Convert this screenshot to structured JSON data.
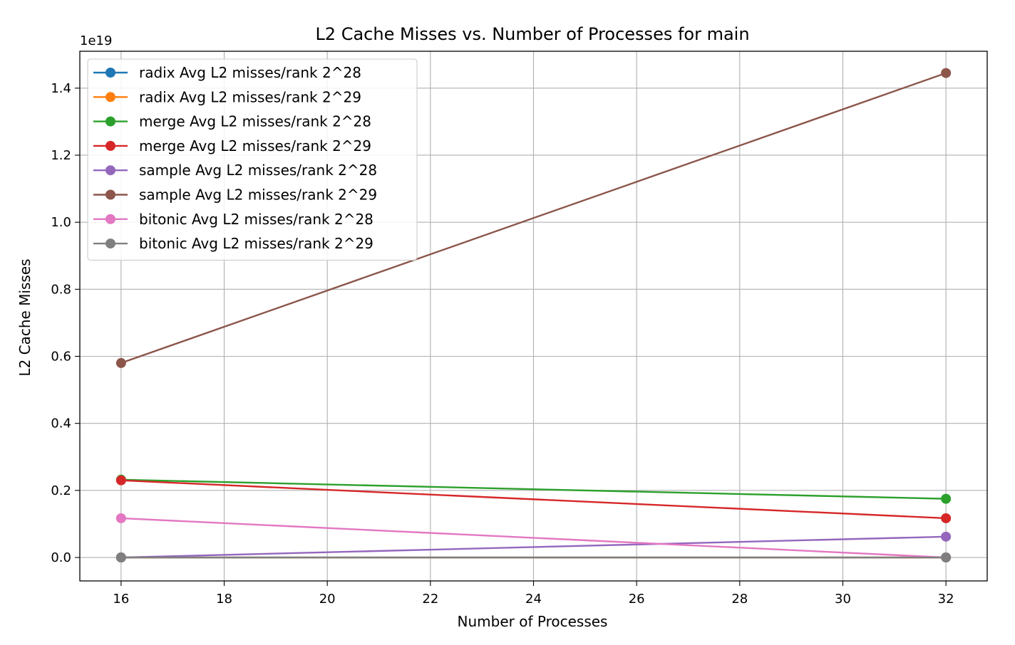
{
  "chart_data": {
    "type": "line",
    "title": "L2 Cache Misses vs. Number of Processes for main",
    "xlabel": "Number of Processes",
    "ylabel": "L2 Cache Misses",
    "y_offset_label": "1e19",
    "x": [
      16,
      32
    ],
    "xlim": [
      15.2,
      32.8
    ],
    "ylim": [
      -0.07,
      1.51
    ],
    "xticks": [
      16,
      18,
      20,
      22,
      24,
      26,
      28,
      30,
      32
    ],
    "xtick_labels": [
      "16",
      "18",
      "20",
      "22",
      "24",
      "26",
      "28",
      "30",
      "32"
    ],
    "yticks": [
      0.0,
      0.2,
      0.4,
      0.6,
      0.8,
      1.0,
      1.2,
      1.4
    ],
    "ytick_labels": [
      "0.0",
      "0.2",
      "0.4",
      "0.6",
      "0.8",
      "1.0",
      "1.2",
      "1.4"
    ],
    "grid": true,
    "legend_position": "top-left",
    "series": [
      {
        "name": "radix Avg L2 misses/rank 2^28",
        "color": "#1f77b4",
        "values": [
          0.0,
          0.0
        ]
      },
      {
        "name": "radix Avg L2 misses/rank 2^29",
        "color": "#ff7f0e",
        "values": [
          0.0,
          0.0
        ]
      },
      {
        "name": "merge Avg L2 misses/rank 2^28",
        "color": "#2ca02c",
        "values": [
          0.232,
          0.175
        ]
      },
      {
        "name": "merge Avg L2 misses/rank 2^29",
        "color": "#d62728",
        "values": [
          0.23,
          0.117
        ]
      },
      {
        "name": "sample Avg L2 misses/rank 2^28",
        "color": "#9467bd",
        "values": [
          0.0,
          0.062
        ]
      },
      {
        "name": "sample Avg L2 misses/rank 2^29",
        "color": "#8c564b",
        "values": [
          0.58,
          1.445
        ]
      },
      {
        "name": "bitonic Avg L2 misses/rank 2^28",
        "color": "#e377c2",
        "values": [
          0.117,
          0.0
        ]
      },
      {
        "name": "bitonic Avg L2 misses/rank 2^29",
        "color": "#7f7f7f",
        "values": [
          0.0,
          0.0
        ]
      }
    ]
  }
}
